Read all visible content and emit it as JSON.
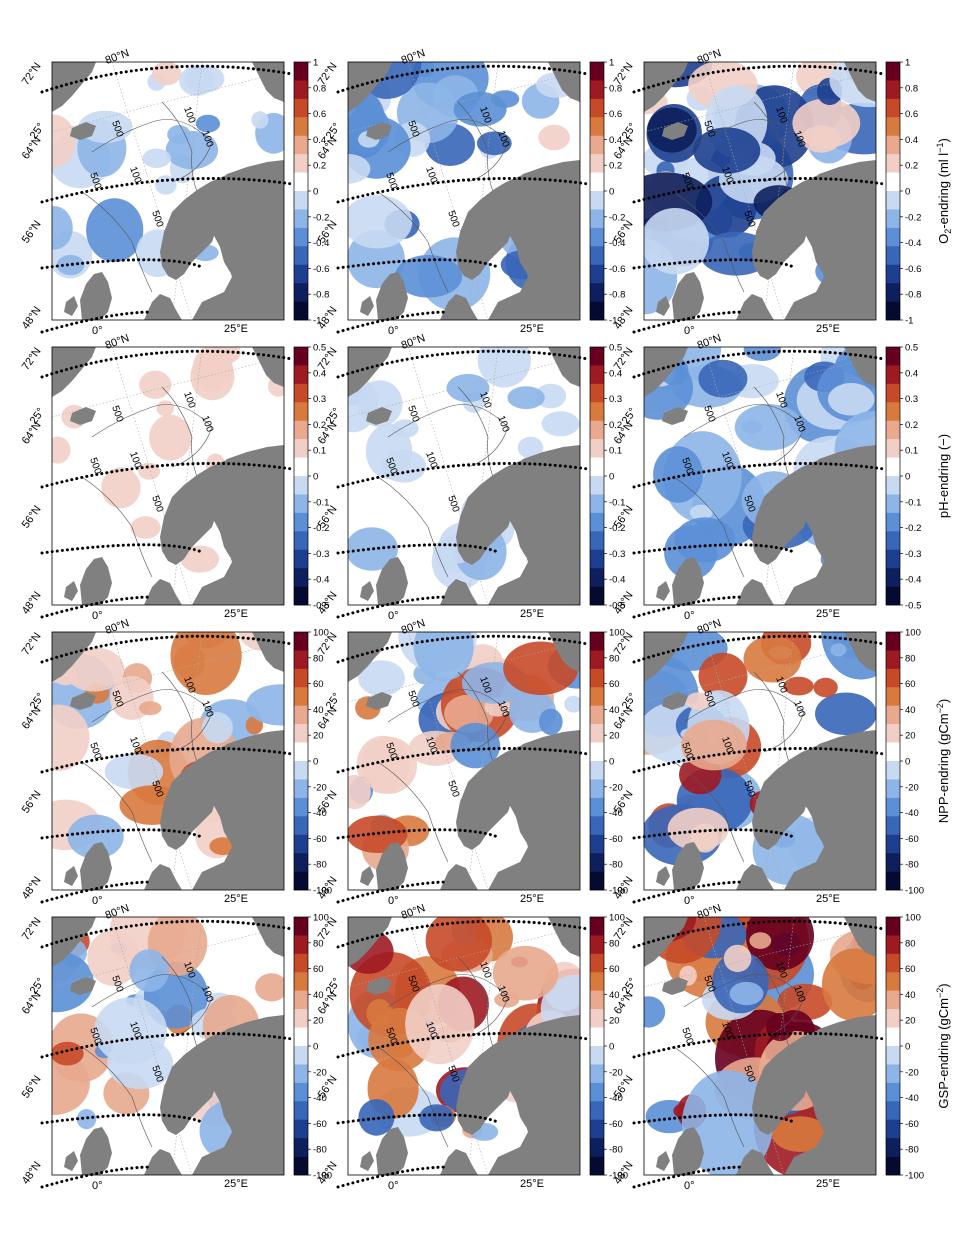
{
  "rows": [
    {
      "key": "o2",
      "label_main": "O",
      "label_sub": "2",
      "label_rest": "-endring (ml l",
      "label_sup": "−1",
      "label_end": ")",
      "colorbar_ticks": [
        "1",
        "0.8",
        "0.6",
        "0.4",
        "0.2",
        "0",
        "-0.2",
        "-0.4",
        "-0.6",
        "-0.8",
        "-1"
      ]
    },
    {
      "key": "ph",
      "label_main": "pH-endring (−)",
      "label_sub": "",
      "label_rest": "",
      "label_sup": "",
      "label_end": "",
      "colorbar_ticks": [
        "0.5",
        "0.4",
        "0.3",
        "0.2",
        "0.1",
        "0",
        "-0.1",
        "-0.2",
        "-0.3",
        "-0.4",
        "-0.5"
      ]
    },
    {
      "key": "npp",
      "label_main": "NPP-endring (gCm",
      "label_sub": "",
      "label_rest": "",
      "label_sup": "−2",
      "label_end": ")",
      "colorbar_ticks": [
        "100",
        "80",
        "60",
        "40",
        "20",
        "0",
        "-20",
        "-40",
        "-60",
        "-80",
        "-100"
      ]
    },
    {
      "key": "gsp",
      "label_main": "GSP-endring (gCm",
      "label_sub": "",
      "label_rest": "",
      "label_sup": "−2",
      "label_end": ")",
      "colorbar_ticks": [
        "100",
        "80",
        "60",
        "40",
        "20",
        "0",
        "-20",
        "-40",
        "-60",
        "-80",
        "-100"
      ]
    }
  ],
  "lat_labels": [
    "72°N",
    "64°N",
    "56°N",
    "48°N"
  ],
  "top_labels": [
    "80°N",
    "25°"
  ],
  "lon_labels": [
    "0°",
    "25°E"
  ],
  "depth_labels": [
    "500",
    "100"
  ],
  "panels": [
    {
      "row": 0,
      "col": 0,
      "fill": 0.3,
      "sign": -1
    },
    {
      "row": 0,
      "col": 1,
      "fill": 0.55,
      "sign": -1
    },
    {
      "row": 0,
      "col": 2,
      "fill": 0.8,
      "sign": -1
    },
    {
      "row": 1,
      "col": 0,
      "fill": 0.05,
      "sign": 1
    },
    {
      "row": 1,
      "col": 1,
      "fill": 0.2,
      "sign": -1
    },
    {
      "row": 1,
      "col": 2,
      "fill": 0.55,
      "sign": -1
    },
    {
      "row": 2,
      "col": 0,
      "fill": 0.45,
      "sign": 1
    },
    {
      "row": 2,
      "col": 1,
      "fill": 0.55,
      "sign": 1
    },
    {
      "row": 2,
      "col": 2,
      "fill": 0.65,
      "sign": 1
    },
    {
      "row": 3,
      "col": 0,
      "fill": 0.5,
      "sign": 1
    },
    {
      "row": 3,
      "col": 1,
      "fill": 0.65,
      "sign": 1
    },
    {
      "row": 3,
      "col": 2,
      "fill": 0.8,
      "sign": 1
    }
  ],
  "colors": {
    "land": "#808080",
    "colorbar": [
      "#67001f",
      "#9e1a22",
      "#c64a28",
      "#d8793e",
      "#e8a98e",
      "#f2cfc6",
      "#ffffff",
      "#c8d9f2",
      "#8db5e8",
      "#5b8fd6",
      "#3866b8",
      "#1d3f8f",
      "#0d1f5c",
      "#040a30"
    ]
  }
}
